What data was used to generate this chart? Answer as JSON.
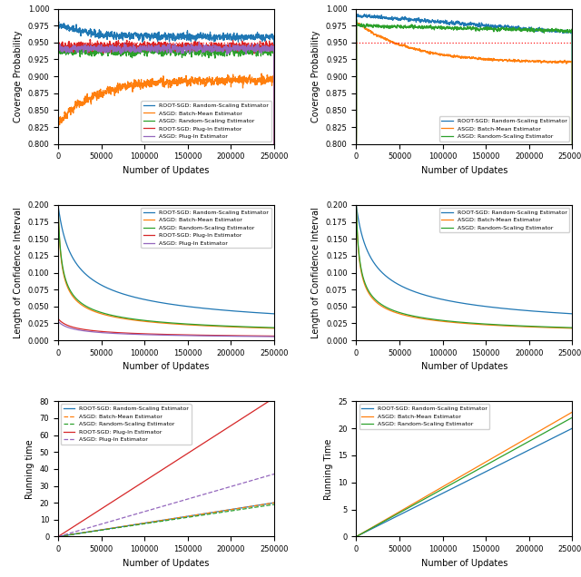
{
  "n_points": 2500,
  "n_max": 250000,
  "red_line_y": 0.95,
  "top_left": {
    "ylim": [
      0.8,
      1.0
    ],
    "yticks": [
      0.8,
      0.825,
      0.85,
      0.875,
      0.9,
      0.925,
      0.95,
      0.975,
      1.0
    ],
    "ylabel": "Coverage Probability",
    "xlabel": "Number of Updates",
    "legend": [
      "ROOT-SGD: Random-Scaling Estimator",
      "ASGD: Batch-Mean Estimator",
      "ASGD: Random-Scaling Estimator",
      "ROOT-SGD: Plug-In Estimator",
      "ASGD: Plug-In Estimator"
    ],
    "colors": [
      "#1f77b4",
      "#ff7f0e",
      "#2ca02c",
      "#d62728",
      "#9467bd"
    ]
  },
  "top_right": {
    "ylim": [
      0.8,
      1.0
    ],
    "yticks": [
      0.8,
      0.825,
      0.85,
      0.875,
      0.9,
      0.925,
      0.95,
      0.975,
      1.0
    ],
    "ylabel": "Coverage Probability",
    "xlabel": "Number of Updates",
    "legend": [
      "ROOT-SGD: Random-Scaling Estimator",
      "ASGD: Batch-Mean Estimator",
      "ASGD: Random-Scaling Estimator"
    ],
    "colors": [
      "#1f77b4",
      "#ff7f0e",
      "#2ca02c"
    ]
  },
  "mid_left": {
    "ylim": [
      0.0,
      0.2
    ],
    "yticks": [
      0.0,
      0.025,
      0.05,
      0.075,
      0.1,
      0.125,
      0.15,
      0.175,
      0.2
    ],
    "ylabel": "Length of Confidence Interval",
    "xlabel": "Number of Updates",
    "legend": [
      "ROOT-SGD: Random-Scaling Estimator",
      "ASGD: Batch-Mean Estimator",
      "ASGD: Random-Scaling Estimator",
      "ROOT-SGD: Plug-In Estimator",
      "ASGD: Plug-In Estimator"
    ],
    "colors": [
      "#1f77b4",
      "#ff7f0e",
      "#2ca02c",
      "#d62728",
      "#9467bd"
    ]
  },
  "mid_right": {
    "ylim": [
      0.0,
      0.2
    ],
    "yticks": [
      0.0,
      0.025,
      0.05,
      0.075,
      0.1,
      0.125,
      0.15,
      0.175,
      0.2
    ],
    "ylabel": "Length of Confidence Interval",
    "xlabel": "Number of Updates",
    "legend": [
      "ROOT-SGD: Random-Scaling Estimator",
      "ASGD: Batch-Mean Estimator",
      "ASGD: Random-Scaling Estimator"
    ],
    "colors": [
      "#1f77b4",
      "#ff7f0e",
      "#2ca02c"
    ]
  },
  "bot_left": {
    "ylim": [
      0,
      80
    ],
    "ylabel": "Running time",
    "xlabel": "Number of Updates",
    "legend": [
      "ROOT-SGD: Random-Scaling Estimator",
      "ASGD: Batch-Mean Estimator",
      "ASGD: Random-Scaling Estimator",
      "ROOT-SGD: Plug-In Estimator",
      "ASGD: Plug-In Estimator"
    ],
    "colors": [
      "#1f77b4",
      "#ff7f0e",
      "#2ca02c",
      "#d62728",
      "#9467bd"
    ],
    "styles": [
      "-",
      "--",
      "--",
      "-",
      "--"
    ],
    "slopes": [
      20,
      20,
      19,
      82,
      37
    ]
  },
  "bot_right": {
    "ylim": [
      0,
      25
    ],
    "ylabel": "Running Time",
    "xlabel": "Number of Updates",
    "legend": [
      "ROOT-SGD: Random-Scaling Estimator",
      "ASGD: Batch-Mean Estimator",
      "ASGD: Random-Scaling Estimator"
    ],
    "colors": [
      "#1f77b4",
      "#ff7f0e",
      "#2ca02c"
    ],
    "styles": [
      "-",
      "-",
      "-"
    ],
    "slopes": [
      20,
      23,
      22
    ]
  }
}
